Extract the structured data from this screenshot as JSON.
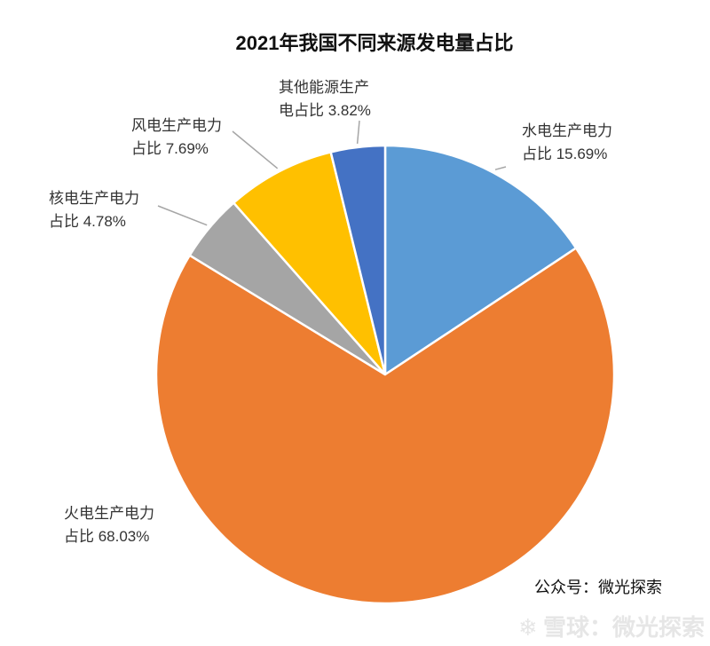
{
  "chart_data": {
    "type": "pie",
    "title": "2021年我国不同来源发电量占比",
    "slices": [
      {
        "line1": "水电生产电力",
        "line2": "占比 15.69%",
        "value": 15.69,
        "color": "#5b9bd5"
      },
      {
        "line1": "火电生产电力",
        "line2": "占比 68.03%",
        "value": 68.03,
        "color": "#ed7d31"
      },
      {
        "line1": "核电生产电力",
        "line2": "占比 4.78%",
        "value": 4.78,
        "color": "#a5a5a5"
      },
      {
        "line1": "风电生产电力",
        "line2": "占比 7.69%",
        "value": 7.69,
        "color": "#ffc000"
      },
      {
        "line1": "其他能源生产",
        "line2": "电占比 3.82%",
        "value": 3.82,
        "color": "#4472c4"
      }
    ],
    "start": "12 o'clock",
    "direction": "clockwise"
  },
  "credit": "公众号：微光探索",
  "watermark": "雪球：微光探索"
}
